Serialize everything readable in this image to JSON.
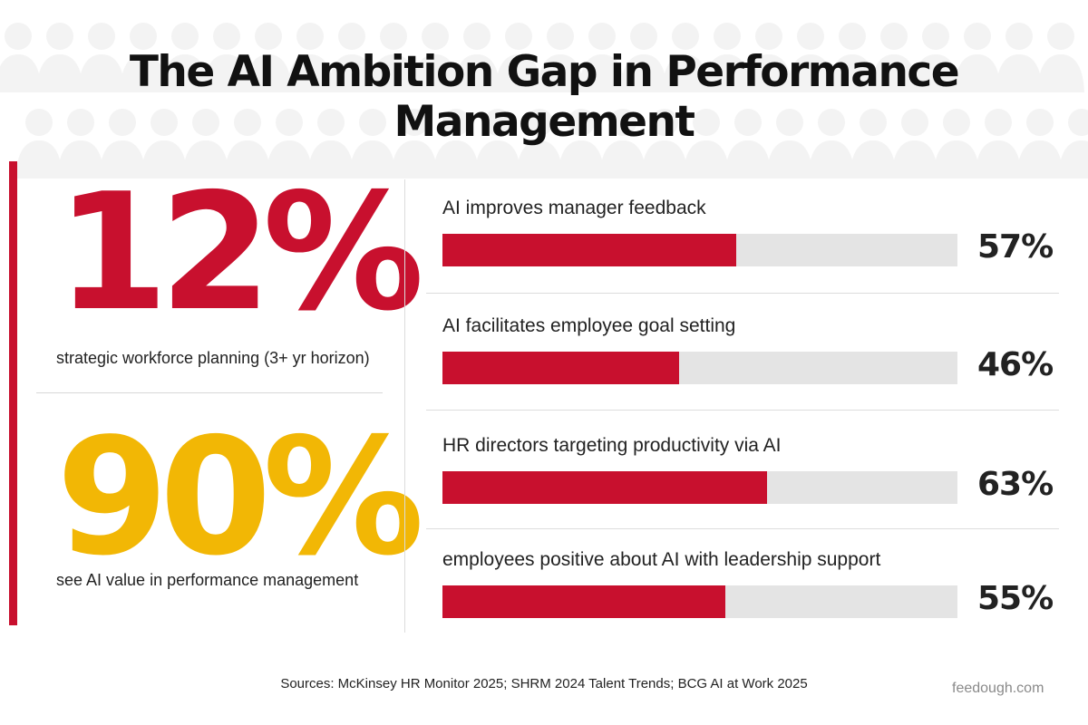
{
  "chart_data": {
    "type": "bar",
    "title": "The AI Ambition Gap in Performance Management",
    "highlights": [
      {
        "value": "12%",
        "caption": "strategic workforce planning (3+ yr horizon)",
        "color": "#c8102e"
      },
      {
        "value": "90%",
        "caption": "see AI value in performance management",
        "color": "#f2b705"
      }
    ],
    "categories": [
      "AI improves manager feedback",
      "AI facilitates employee goal setting",
      "HR directors targeting productivity via AI",
      "employees positive about AI with leadership support"
    ],
    "values": [
      57,
      46,
      63,
      55
    ],
    "value_labels": [
      "57%",
      "46%",
      "63%",
      "55%"
    ],
    "ylim": [
      0,
      100
    ],
    "bar_color": "#c8102e",
    "track_color": "#e4e4e4",
    "grid": false
  },
  "footer": {
    "sources": "Sources: McKinsey HR Monitor 2025; SHRM 2024 Talent Trends; BCG AI at Work 2025",
    "watermark": "feedough.com"
  }
}
